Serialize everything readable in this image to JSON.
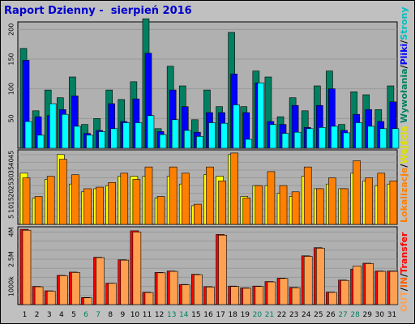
{
  "title": "Raport Dzienny -  sierpień 2016",
  "colors": {
    "background": "#c0c0c0",
    "plot_background": "#b0b0b0",
    "grid": "#999999",
    "hits": "#008060",
    "files": "#0000ff",
    "pages": "#00ffff",
    "visits": "#ffff00",
    "sites": "#ff8000",
    "kbytes": "#ff0000",
    "kbytes_in": "#ffa050",
    "weekday_label": "#000000",
    "weekend_label": "#008060"
  },
  "side_labels": {
    "top": [
      {
        "text": "Wywołania",
        "color": "#008060"
      },
      {
        "text": "/",
        "color": "#000000"
      },
      {
        "text": "Pliki",
        "color": "#0000ff"
      },
      {
        "text": "/",
        "color": "#000000"
      },
      {
        "text": "Strony",
        "color": "#00c0c0"
      }
    ],
    "middle": [
      {
        "text": "Lokalizacje",
        "color": "#ff8000"
      },
      {
        "text": "/",
        "color": "#000000"
      },
      {
        "text": "Wejścia",
        "color": "#e0e000"
      }
    ],
    "bottom": [
      {
        "text": "OUT",
        "color": "#ffa050"
      },
      {
        "text": "/",
        "color": "#000000"
      },
      {
        "text": "IN",
        "color": "#ff6000"
      },
      {
        "text": "/",
        "color": "#000000"
      },
      {
        "text": "Transfer",
        "color": "#ff0000"
      }
    ]
  },
  "chart_data": [
    {
      "type": "bar",
      "name": "top",
      "x": [
        "1",
        "2",
        "3",
        "4",
        "5",
        "6",
        "7",
        "8",
        "9",
        "10",
        "11",
        "12",
        "13",
        "14",
        "15",
        "16",
        "17",
        "18",
        "19",
        "20",
        "21",
        "22",
        "23",
        "24",
        "25",
        "26",
        "27",
        "28",
        "29",
        "30",
        "31"
      ],
      "ylim": [
        0,
        210
      ],
      "yticks": [
        50,
        100,
        150,
        200
      ],
      "series": [
        {
          "name": "Wywołania",
          "values": [
            168,
            63,
            98,
            85,
            120,
            40,
            50,
            98,
            82,
            112,
            218,
            33,
            138,
            105,
            48,
            98,
            70,
            195,
            70,
            130,
            120,
            53,
            85,
            63,
            105,
            130,
            40,
            95,
            90,
            65,
            105
          ]
        },
        {
          "name": "Pliki",
          "values": [
            148,
            53,
            55,
            65,
            88,
            25,
            30,
            75,
            45,
            83,
            160,
            28,
            98,
            70,
            27,
            60,
            60,
            125,
            60,
            110,
            45,
            40,
            72,
            35,
            72,
            100,
            30,
            57,
            65,
            45,
            78
          ]
        },
        {
          "name": "Strony",
          "values": [
            45,
            22,
            75,
            57,
            37,
            22,
            28,
            33,
            43,
            43,
            55,
            23,
            48,
            30,
            20,
            43,
            42,
            73,
            15,
            110,
            40,
            25,
            27,
            33,
            35,
            37,
            26,
            43,
            37,
            33,
            33
          ]
        }
      ]
    },
    {
      "type": "bar",
      "name": "middle",
      "x": [
        "1",
        "2",
        "3",
        "4",
        "5",
        "6",
        "7",
        "8",
        "9",
        "10",
        "11",
        "12",
        "13",
        "14",
        "15",
        "16",
        "17",
        "18",
        "19",
        "20",
        "21",
        "22",
        "23",
        "24",
        "25",
        "26",
        "27",
        "28",
        "29",
        "30",
        "31"
      ],
      "ylim": [
        0,
        47
      ],
      "yticks": [
        5,
        10,
        15,
        20,
        25,
        30,
        35,
        40,
        45
      ],
      "series": [
        {
          "name": "Wejścia",
          "values": [
            33,
            17,
            29,
            45,
            26,
            21,
            23,
            25,
            31,
            31,
            31,
            17,
            31,
            26,
            12,
            32,
            31,
            45,
            18,
            25,
            25,
            20,
            18,
            31,
            23,
            26,
            23,
            33,
            28,
            25,
            26
          ]
        },
        {
          "name": "Lokalizacje",
          "values": [
            30,
            18,
            31,
            42,
            32,
            23,
            24,
            27,
            33,
            29,
            37,
            18,
            37,
            33,
            13,
            37,
            28,
            46,
            17,
            25,
            34,
            25,
            21,
            37,
            23,
            30,
            23,
            41,
            30,
            33,
            28
          ]
        }
      ]
    },
    {
      "type": "bar",
      "name": "bottom",
      "x": [
        "1",
        "2",
        "3",
        "4",
        "5",
        "6",
        "7",
        "8",
        "9",
        "10",
        "11",
        "12",
        "13",
        "14",
        "15",
        "16",
        "17",
        "18",
        "19",
        "20",
        "21",
        "22",
        "23",
        "24",
        "25",
        "26",
        "27",
        "28",
        "29",
        "30",
        "31"
      ],
      "ylim": [
        0,
        4200
      ],
      "yticks": [
        500,
        1000,
        1500,
        2000,
        2500,
        3000,
        3500,
        4000
      ],
      "ytick_labels": [
        "",
        "1000k",
        "",
        "",
        "2.5M",
        "",
        "",
        "4M"
      ],
      "series": [
        {
          "name": "Transfer",
          "values": [
            4150,
            1000,
            760,
            1610,
            1790,
            390,
            2610,
            1180,
            2470,
            4070,
            680,
            1770,
            1850,
            1110,
            1670,
            990,
            3870,
            1020,
            920,
            1020,
            1270,
            1460,
            950,
            2690,
            3140,
            690,
            1350,
            1950,
            2280,
            1850,
            1850
          ]
        },
        {
          "name": "IN",
          "values": [
            4100,
            980,
            740,
            1590,
            1770,
            370,
            2590,
            1170,
            2450,
            4000,
            660,
            1750,
            1830,
            1090,
            1650,
            970,
            3830,
            1000,
            900,
            1000,
            1250,
            1440,
            930,
            2660,
            3110,
            670,
            1330,
            2130,
            2260,
            1830,
            1830
          ]
        }
      ]
    }
  ],
  "weekend_days": [
    "6",
    "7",
    "13",
    "14",
    "20",
    "21",
    "27",
    "28"
  ]
}
